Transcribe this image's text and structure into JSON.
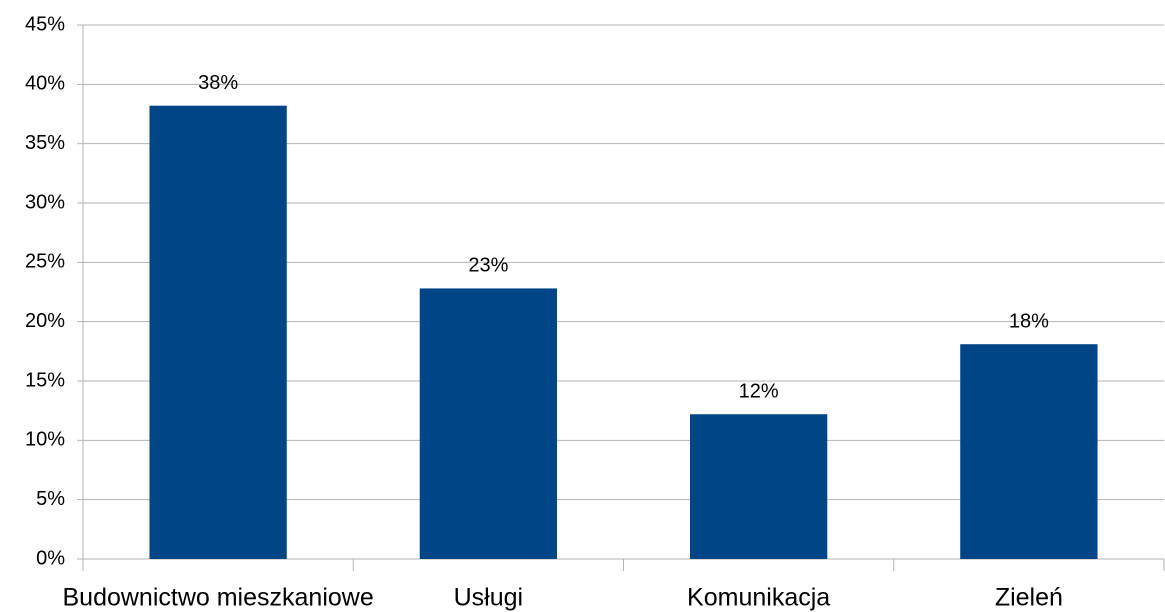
{
  "chart_data": {
    "type": "bar",
    "categories": [
      "Budownictwo mieszkaniowe",
      "Usługi",
      "Komunikacja",
      "Zieleń"
    ],
    "values": [
      38.2,
      22.8,
      12.2,
      18.1
    ],
    "value_labels": [
      "38%",
      "23%",
      "12%",
      "18%"
    ],
    "color": "#004586",
    "ylim": [
      0,
      45
    ],
    "yticks": [
      {
        "value": 0,
        "label": "0%"
      },
      {
        "value": 5,
        "label": "5%"
      },
      {
        "value": 10,
        "label": "10%"
      },
      {
        "value": 15,
        "label": "15%"
      },
      {
        "value": 20,
        "label": "20%"
      },
      {
        "value": 25,
        "label": "25%"
      },
      {
        "value": 30,
        "label": "30%"
      },
      {
        "value": 35,
        "label": "35%"
      },
      {
        "value": 40,
        "label": "40%"
      },
      {
        "value": 45,
        "label": "45%"
      }
    ],
    "grid": true
  }
}
